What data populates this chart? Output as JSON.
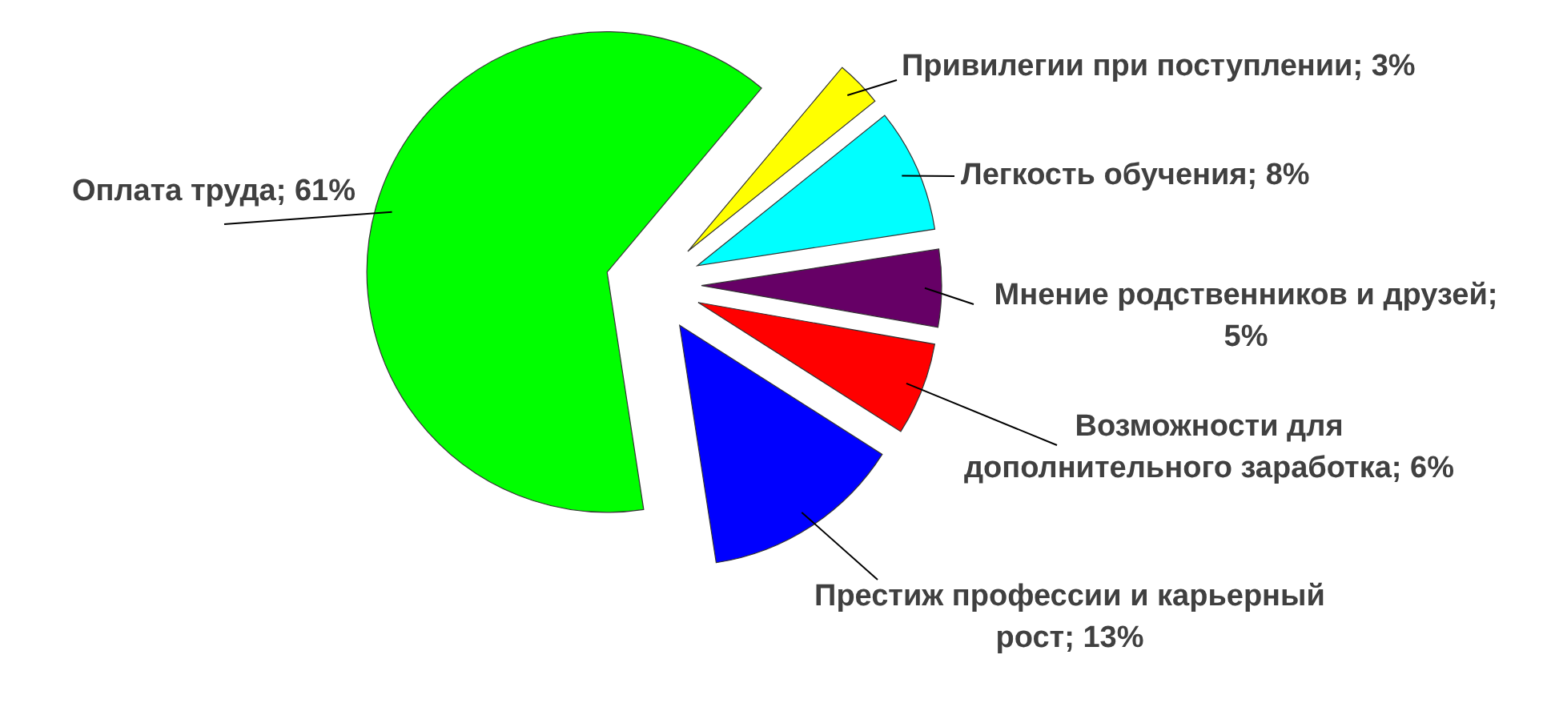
{
  "chart_data": {
    "type": "pie",
    "categories": [
      "Привилегии при поступлении; 3%",
      "Легкость обучения; 8%",
      "Мнение родственников и друзей; 5%",
      "Возможности для дополнительного заработка; 6%",
      "Престиж профессии и карьерный рост; 13%",
      "Оплата труда; 61%"
    ],
    "values": [
      3,
      8,
      5,
      6,
      13,
      61
    ],
    "colors": [
      "#ffff00",
      "#00ffff",
      "#660066",
      "#ff0000",
      "#0000ff",
      "#00ff00"
    ]
  }
}
